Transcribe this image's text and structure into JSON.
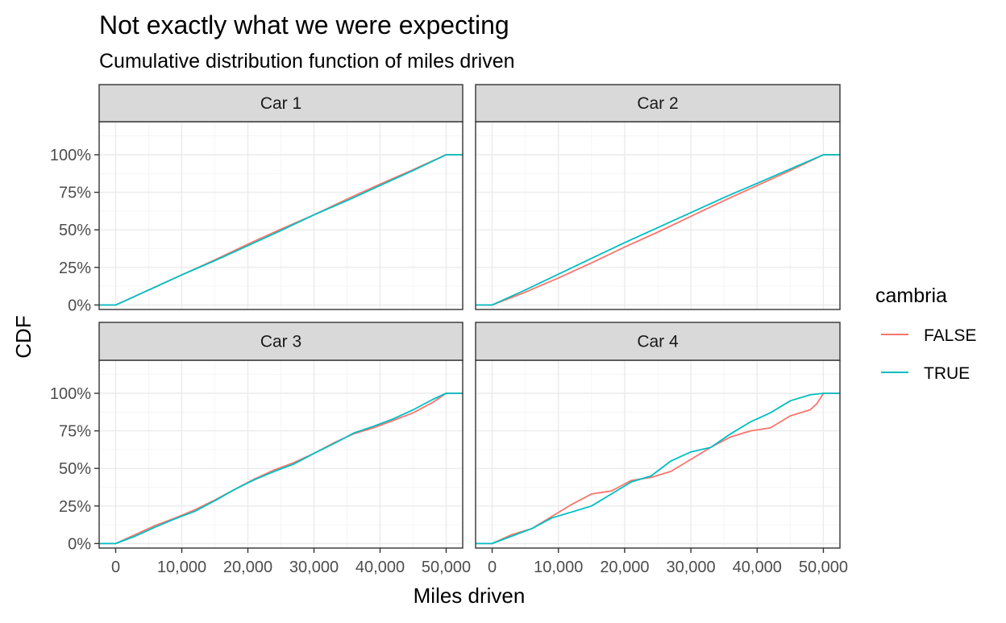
{
  "chart_data": {
    "type": "line",
    "title": "Not exactly what we were expecting",
    "subtitle": "Cumulative distribution function of miles driven",
    "xlabel": "Miles driven",
    "ylabel": "CDF",
    "xlim": [
      -2500,
      52500
    ],
    "ylim": [
      -0.03,
      1.22
    ],
    "x_ticks": [
      0,
      10000,
      20000,
      30000,
      40000,
      50000
    ],
    "x_tick_labels": [
      "0",
      "10,000",
      "20,000",
      "30,000",
      "40,000",
      "50,000"
    ],
    "y_ticks": [
      0,
      0.25,
      0.5,
      0.75,
      1.0
    ],
    "y_tick_labels": [
      "0%",
      "25%",
      "50%",
      "75%",
      "100%"
    ],
    "grid": true,
    "legend": {
      "title": "cambria",
      "position": "right",
      "entries": [
        {
          "label": "FALSE",
          "color": "#F8766D"
        },
        {
          "label": "TRUE",
          "color": "#00BFC4"
        }
      ]
    },
    "panels": [
      {
        "name": "Car 1",
        "series": [
          {
            "name": "FALSE",
            "color": "#F8766D",
            "x": [
              -2500,
              0,
              5000,
              10000,
              15000,
              20000,
              25000,
              30000,
              35000,
              40000,
              45000,
              50000,
              52500
            ],
            "y": [
              0,
              0,
              0.1,
              0.2,
              0.3,
              0.405,
              0.505,
              0.6,
              0.705,
              0.805,
              0.9,
              1.0,
              1.0
            ]
          },
          {
            "name": "TRUE",
            "color": "#00BFC4",
            "x": [
              -2500,
              0,
              5000,
              10000,
              15000,
              20000,
              25000,
              30000,
              35000,
              40000,
              45000,
              50000,
              52500
            ],
            "y": [
              0,
              0,
              0.1,
              0.2,
              0.295,
              0.395,
              0.495,
              0.6,
              0.695,
              0.795,
              0.895,
              1.0,
              1.0
            ]
          }
        ]
      },
      {
        "name": "Car 2",
        "series": [
          {
            "name": "FALSE",
            "color": "#F8766D",
            "x": [
              -2500,
              0,
              5000,
              10000,
              15000,
              20000,
              25000,
              30000,
              35000,
              40000,
              45000,
              50000,
              52500
            ],
            "y": [
              0,
              0,
              0.085,
              0.18,
              0.28,
              0.385,
              0.485,
              0.59,
              0.695,
              0.795,
              0.895,
              1.0,
              1.0
            ]
          },
          {
            "name": "TRUE",
            "color": "#00BFC4",
            "x": [
              -2500,
              0,
              5000,
              10000,
              15000,
              20000,
              25000,
              30000,
              35000,
              40000,
              45000,
              50000,
              52500
            ],
            "y": [
              0,
              0,
              0.1,
              0.205,
              0.31,
              0.415,
              0.515,
              0.615,
              0.715,
              0.81,
              0.905,
              1.0,
              1.0
            ]
          }
        ]
      },
      {
        "name": "Car 3",
        "series": [
          {
            "name": "FALSE",
            "color": "#F8766D",
            "x": [
              -2500,
              0,
              3000,
              6000,
              9000,
              12000,
              15000,
              18000,
              21000,
              24000,
              27000,
              30000,
              33000,
              36000,
              39000,
              42000,
              45000,
              48000,
              50000,
              52500
            ],
            "y": [
              0,
              0,
              0.06,
              0.12,
              0.17,
              0.225,
              0.29,
              0.36,
              0.43,
              0.49,
              0.54,
              0.6,
              0.67,
              0.73,
              0.77,
              0.82,
              0.87,
              0.94,
              1.0,
              1.0
            ]
          },
          {
            "name": "TRUE",
            "color": "#00BFC4",
            "x": [
              -2500,
              0,
              3000,
              6000,
              9000,
              12000,
              15000,
              18000,
              21000,
              24000,
              27000,
              30000,
              33000,
              36000,
              39000,
              42000,
              45000,
              48000,
              50000,
              52500
            ],
            "y": [
              0,
              0,
              0.05,
              0.11,
              0.165,
              0.215,
              0.285,
              0.36,
              0.425,
              0.48,
              0.53,
              0.6,
              0.665,
              0.735,
              0.78,
              0.83,
              0.89,
              0.96,
              1.0,
              1.0
            ]
          }
        ]
      },
      {
        "name": "Car 4",
        "series": [
          {
            "name": "FALSE",
            "color": "#F8766D",
            "x": [
              -2500,
              0,
              3000,
              6000,
              9000,
              12000,
              15000,
              18000,
              21000,
              24000,
              27000,
              30000,
              33000,
              36000,
              39000,
              42000,
              45000,
              48000,
              49000,
              50000,
              52500
            ],
            "y": [
              0,
              0,
              0.06,
              0.1,
              0.18,
              0.26,
              0.33,
              0.35,
              0.42,
              0.44,
              0.48,
              0.56,
              0.64,
              0.71,
              0.75,
              0.77,
              0.85,
              0.89,
              0.93,
              1.0,
              1.0
            ]
          },
          {
            "name": "TRUE",
            "color": "#00BFC4",
            "x": [
              -2500,
              0,
              3000,
              6000,
              9000,
              12000,
              15000,
              18000,
              21000,
              24000,
              27000,
              30000,
              33000,
              36000,
              39000,
              42000,
              45000,
              48000,
              50000,
              52500
            ],
            "y": [
              0,
              0,
              0.05,
              0.1,
              0.17,
              0.21,
              0.25,
              0.33,
              0.41,
              0.45,
              0.55,
              0.61,
              0.64,
              0.73,
              0.81,
              0.87,
              0.95,
              0.99,
              1.0,
              1.0
            ]
          }
        ]
      }
    ]
  }
}
